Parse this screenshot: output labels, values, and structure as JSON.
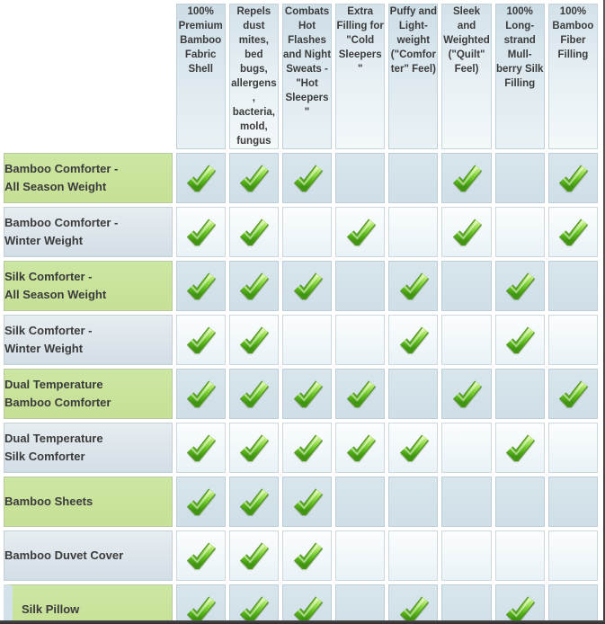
{
  "table": {
    "corner_label": "",
    "columns": [
      "100%\nPremium\nBamboo\nFabric\nShell",
      "Repels\ndust\nmites,\nbed bugs,\nallergens,\nbacteria,\nmold,\nfungus",
      "Combats\nHot\nFlashes\nand Night\nSweats -\n\"Hot\nSleepers\"",
      "Extra\nFilling for\n\"Cold\nSleepers\"",
      "Puffy and\nLight-\nweight\n(\"Comfor\nter\" Feel)",
      "Sleek and\nWeighted\n(\"Quilt\"\nFeel)",
      "100%\nLong-\nstrand\nMull-\nberry Silk\nFilling",
      "100%\nBamboo\nFiber\nFilling"
    ],
    "rows": [
      {
        "label": "Bamboo Comforter -\nAll Season Weight",
        "checks": [
          1,
          1,
          1,
          0,
          0,
          1,
          0,
          1
        ]
      },
      {
        "label": "Bamboo Comforter -\nWinter Weight",
        "checks": [
          1,
          1,
          0,
          1,
          0,
          1,
          0,
          1
        ]
      },
      {
        "label": "Silk Comforter -\nAll Season Weight",
        "checks": [
          1,
          1,
          1,
          0,
          1,
          0,
          1,
          0
        ]
      },
      {
        "label": "Silk Comforter -\nWinter Weight",
        "checks": [
          1,
          1,
          0,
          0,
          1,
          0,
          1,
          0
        ]
      },
      {
        "label": "Dual Temperature\nBamboo Comforter",
        "checks": [
          1,
          1,
          1,
          1,
          0,
          1,
          0,
          1
        ]
      },
      {
        "label": "Dual Temperature\nSilk Comforter",
        "checks": [
          1,
          1,
          1,
          1,
          1,
          0,
          1,
          0
        ]
      },
      {
        "label": "Bamboo Sheets",
        "checks": [
          1,
          1,
          1,
          0,
          0,
          0,
          0,
          0
        ]
      },
      {
        "label": "Bamboo Duvet Cover",
        "checks": [
          1,
          1,
          1,
          0,
          0,
          0,
          0,
          0
        ]
      },
      {
        "label": "Silk Pillow",
        "checks": [
          1,
          1,
          1,
          0,
          1,
          0,
          1,
          0
        ]
      }
    ],
    "check_icon": "green-check-icon",
    "colors": {
      "row_highlight_green": "#c9e39c",
      "row_label_gray": "#d9e3e9",
      "cell_blue": "#d3e2ea",
      "cell_white": "#f3f9fb",
      "header_blue": "#d8e5ec",
      "check_green": "#6cc424",
      "check_border_green": "#55952a",
      "text": "#3b3b3b",
      "bottom_bar": "#3a3a3a"
    }
  },
  "chart_data": {
    "type": "table",
    "title": "Bamboo & Silk Bedding Product Feature Comparison",
    "columns": [
      "100% Premium Bamboo Fabric Shell",
      "Repels dust mites, bed bugs, allergens, bacteria, mold, fungus",
      "Combats Hot Flashes and Night Sweats - \"Hot Sleepers\"",
      "Extra Filling for \"Cold Sleepers\"",
      "Puffy and Light-weight (\"Comforter\" Feel)",
      "Sleek and Weighted (\"Quilt\" Feel)",
      "100% Long-strand Mull-berry Silk Filling",
      "100% Bamboo Fiber Filling"
    ],
    "categories": [
      "Bamboo Comforter - All Season Weight",
      "Bamboo Comforter - Winter Weight",
      "Silk Comforter - All Season Weight",
      "Silk Comforter - Winter Weight",
      "Dual Temperature Bamboo Comforter",
      "Dual Temperature Silk Comforter",
      "Bamboo Sheets",
      "Bamboo Duvet Cover",
      "Silk Pillow"
    ],
    "values": [
      [
        1,
        1,
        1,
        0,
        0,
        1,
        0,
        1
      ],
      [
        1,
        1,
        0,
        1,
        0,
        1,
        0,
        1
      ],
      [
        1,
        1,
        1,
        0,
        1,
        0,
        1,
        0
      ],
      [
        1,
        1,
        0,
        0,
        1,
        0,
        1,
        0
      ],
      [
        1,
        1,
        1,
        1,
        0,
        1,
        0,
        1
      ],
      [
        1,
        1,
        1,
        1,
        1,
        0,
        1,
        0
      ],
      [
        1,
        1,
        1,
        0,
        0,
        0,
        0,
        0
      ],
      [
        1,
        1,
        1,
        0,
        0,
        0,
        0,
        0
      ],
      [
        1,
        1,
        1,
        0,
        1,
        0,
        1,
        0
      ]
    ],
    "value_meaning": "1 = green checkmark present, 0 = empty cell"
  }
}
